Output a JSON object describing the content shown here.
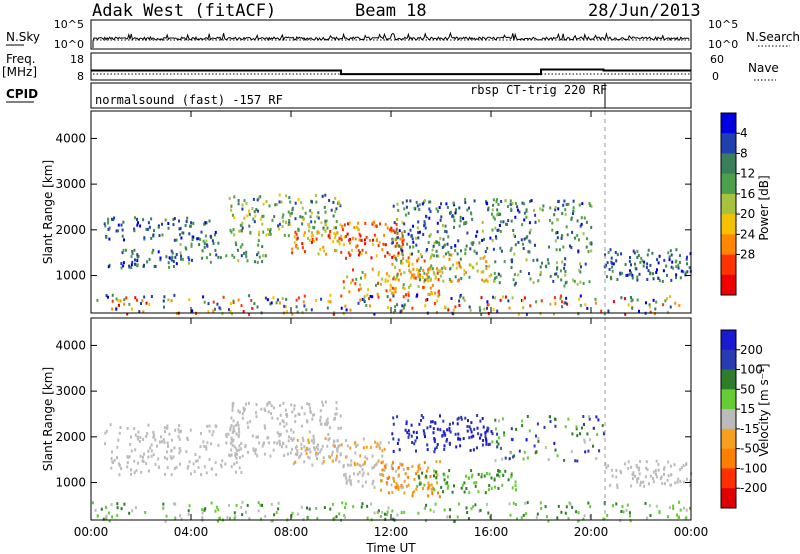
{
  "header": {
    "station": "Adak West (fitACF)",
    "beam": "Beam 18",
    "date": "28/Jun/2013"
  },
  "side_labels": {
    "nsky": "N.Sky",
    "nsearch": "N.Search",
    "freq": "Freq.",
    "freq_unit": "[MHz]",
    "nave": "Nave",
    "cpid": "CPID"
  },
  "noise_axes": {
    "left_top": "10^5",
    "left_bottom": "10^0",
    "right_top": "10^5",
    "right_bottom": "10^0"
  },
  "freq_axes": {
    "left_top": "18",
    "left_bottom": "8",
    "right_top": "60",
    "right_bottom": "0"
  },
  "freq_trace": [
    {
      "from": "00:00",
      "to": "10:00",
      "mhz": 11.5
    },
    {
      "from": "10:00",
      "to": "18:00",
      "mhz": 10.2
    },
    {
      "from": "18:00",
      "to": "20:30",
      "mhz": 11.9
    },
    {
      "from": "20:30",
      "to": "24:00",
      "mhz": 11.5
    }
  ],
  "cpid": {
    "left": "normalsound (fast) -157 RF",
    "right": "rbsp CT-trig 220 RF",
    "switch_time": "20:30"
  },
  "colors": {
    "power": [
      "#0000e0",
      "#2040b0",
      "#3a7f5a",
      "#4c9f4c",
      "#a7c23c",
      "#f4c200",
      "#ff8800",
      "#ff3300",
      "#ee0000"
    ],
    "velocity": [
      "#1a1ad0",
      "#2a3ab0",
      "#2d7d2d",
      "#66cc33",
      "#bbbbbb",
      "#f7a020",
      "#ff8000",
      "#ff3000",
      "#e00000"
    ]
  },
  "chart_data": [
    {
      "type": "heatmap",
      "title": "Power",
      "ylabel": "Slant Range [km]",
      "ylim": [
        180,
        4600
      ],
      "yticks": [
        "1000",
        "2000",
        "3000",
        "4000"
      ],
      "xticks": [
        "00:00",
        "04:00",
        "08:00",
        "12:00",
        "16:00",
        "20:00",
        "00:00"
      ],
      "colorbar_label": "Power [dB]",
      "colorbar_ticks": [
        "4",
        "8",
        "12",
        "16",
        "20",
        "24",
        "28"
      ],
      "grid": false
    },
    {
      "type": "heatmap",
      "title": "Velocity",
      "ylabel": "Slant Range [km]",
      "ylim": [
        180,
        4600
      ],
      "yticks": [
        "1000",
        "2000",
        "3000",
        "4000"
      ],
      "xticks": [
        "00:00",
        "04:00",
        "08:00",
        "12:00",
        "16:00",
        "20:00",
        "00:00"
      ],
      "xlabel": "Time UT",
      "colorbar_label": "Velocity [m s⁻¹]",
      "colorbar_ticks": [
        "200",
        "100",
        "50",
        "15",
        "-15",
        "-50",
        "-100",
        "-200"
      ],
      "grid": false
    }
  ]
}
